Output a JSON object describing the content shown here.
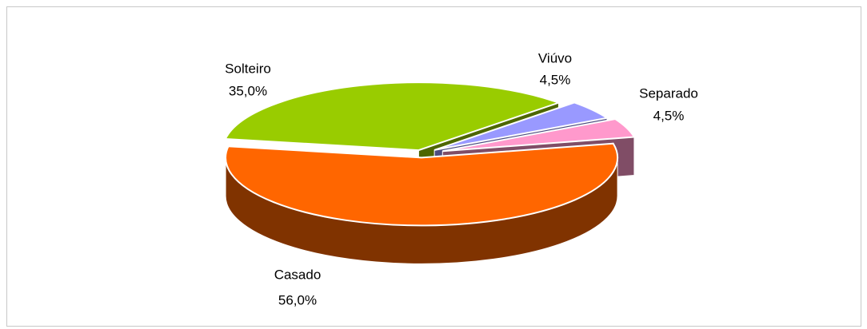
{
  "chart_data": {
    "type": "pie",
    "categories": [
      "Casado",
      "Solteiro",
      "Viúvo",
      "Separado"
    ],
    "values": [
      56.0,
      35.0,
      4.5,
      4.5
    ],
    "value_labels": [
      "56,0%",
      "35,0%",
      "4,5%",
      "4,5%"
    ],
    "colors": [
      "#ff6600",
      "#99cc00",
      "#9999ff",
      "#ff99cc"
    ]
  }
}
